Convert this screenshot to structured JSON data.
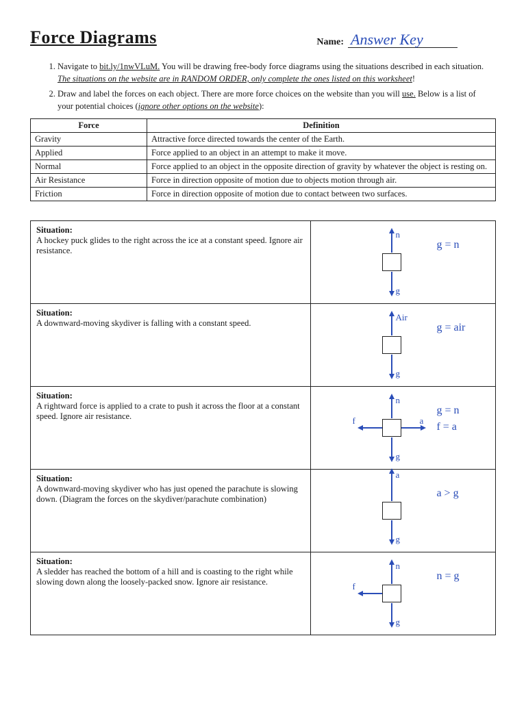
{
  "header": {
    "title": "Force Diagrams",
    "name_label": "Name:",
    "answer_name": "Answer Key"
  },
  "instructions": [
    {
      "pre": "Navigate to ",
      "link": "bit.ly/1nwVLuM.",
      "mid": " You will be drawing free-body force diagrams using the situations described in each situation.  ",
      "emph": "The situations on the website are in RANDOM ORDER, only complete the ones listed on this worksheet",
      "post": "!"
    },
    {
      "pre": "Draw and label the forces on each object.  There are more force choices on the website than you will ",
      "link": "use.",
      "mid": " Below is a list of your potential choices (",
      "emph": "ignore other options on the website",
      "post": "):"
    }
  ],
  "def_table": {
    "headers": [
      "Force",
      "Definition"
    ],
    "rows": [
      [
        "Gravity",
        "Attractive force directed towards the center of the Earth."
      ],
      [
        "Applied",
        "Force applied to an object in an attempt to make it move."
      ],
      [
        "Normal",
        "Force applied to an object in the opposite direction of gravity by whatever the object is resting on."
      ],
      [
        "Air Resistance",
        "Force in direction opposite of motion due to objects motion through air."
      ],
      [
        "Friction",
        "Force in direction opposite of motion due to contact between two surfaces."
      ]
    ]
  },
  "situations": [
    {
      "label": "Situation:",
      "text": "A hockey puck glides to the right across the ice at a constant speed.  Ignore air resistance.",
      "diagram": {
        "up": "n",
        "down": "g",
        "left": null,
        "right": null,
        "eq": "g = n"
      }
    },
    {
      "label": "Situation:",
      "text": "A downward-moving skydiver is falling with a constant speed.",
      "diagram": {
        "up": "Air",
        "down": "g",
        "left": null,
        "right": null,
        "eq": "g = air"
      }
    },
    {
      "label": "Situation:",
      "text": "A rightward force is applied to a crate to push it across the floor at a constant speed.  Ignore air resistance.",
      "diagram": {
        "up": "n",
        "down": "g",
        "left": "f",
        "right": "a",
        "eq": "g = n",
        "eq2": "f = a"
      }
    },
    {
      "label": "Situation:",
      "text": "A downward-moving skydiver who has just opened the parachute is slowing down.  (Diagram the forces on the skydiver/parachute combination)",
      "diagram": {
        "up": "a",
        "down": "g",
        "left": null,
        "right": null,
        "eq": "a > g",
        "up_long": true
      }
    },
    {
      "label": "Situation:",
      "text": "A sledder has reached the bottom of a hill and is coasting to the right while slowing down along the loosely-packed snow.  Ignore air resistance.",
      "diagram": {
        "up": "n",
        "down": "g",
        "left": "f",
        "right": null,
        "eq": "n = g"
      }
    }
  ],
  "style": {
    "ink_color": "#2a4db8",
    "text_color": "#1a1a1a",
    "border_color": "#222222",
    "background": "#ffffff",
    "arrow_len": 30,
    "arrow_len_long": 42,
    "box_size": 28
  }
}
